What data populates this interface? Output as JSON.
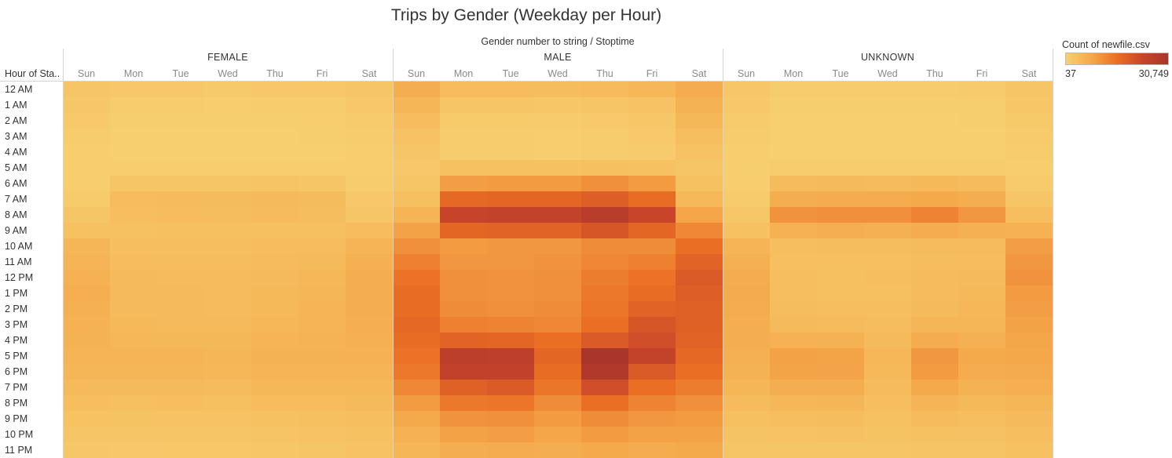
{
  "chart_data": {
    "type": "heatmap",
    "title": "Trips by Gender (Weekday per Hour)",
    "column_field": "Gender number to string  /  Stoptime",
    "row_field": "Hour of Sta..",
    "genders": [
      "FEMALE",
      "MALE",
      "UNKNOWN"
    ],
    "days": [
      "Sun",
      "Mon",
      "Tue",
      "Wed",
      "Thu",
      "Fri",
      "Sat"
    ],
    "hours": [
      "12 AM",
      "1 AM",
      "2 AM",
      "3 AM",
      "4 AM",
      "5 AM",
      "6 AM",
      "7 AM",
      "8 AM",
      "9 AM",
      "10 AM",
      "11 AM",
      "12 PM",
      "1 PM",
      "2 PM",
      "3 PM",
      "4 PM",
      "5 PM",
      "6 PM",
      "7 PM",
      "8 PM",
      "9 PM",
      "10 PM",
      "11 PM"
    ],
    "legend": {
      "title": "Count of newfile.csv",
      "min_label": "37",
      "max_label": "30,749",
      "min": 37,
      "max": 30749,
      "colors": [
        "#f7d070",
        "#f4a84a",
        "#ea6f24",
        "#c9452a",
        "#a8362b"
      ]
    },
    "values": {
      "FEMALE": [
        [
          2200,
          1500,
          1500,
          1400,
          1500,
          1600,
          2000
        ],
        [
          1700,
          800,
          800,
          700,
          800,
          900,
          1500
        ],
        [
          1300,
          500,
          500,
          500,
          500,
          600,
          1100
        ],
        [
          900,
          300,
          300,
          300,
          300,
          400,
          800
        ],
        [
          700,
          300,
          300,
          300,
          300,
          300,
          600
        ],
        [
          600,
          700,
          700,
          700,
          700,
          700,
          600
        ],
        [
          700,
          2000,
          2200,
          2100,
          2300,
          2200,
          900
        ],
        [
          1200,
          3800,
          4000,
          3900,
          4200,
          3900,
          1500
        ],
        [
          2000,
          3500,
          3800,
          3700,
          4000,
          3600,
          2200
        ],
        [
          3000,
          3000,
          3200,
          3100,
          3300,
          3200,
          3800
        ],
        [
          5000,
          3500,
          3500,
          3500,
          3800,
          3800,
          5500
        ],
        [
          5500,
          3800,
          3700,
          3700,
          4000,
          4200,
          6200
        ],
        [
          6000,
          4200,
          4000,
          4000,
          4300,
          4800,
          6500
        ],
        [
          6300,
          4300,
          4200,
          4100,
          4400,
          5000,
          6600
        ],
        [
          6200,
          4300,
          4200,
          4100,
          4500,
          5300,
          6500
        ],
        [
          6000,
          4400,
          4300,
          4200,
          4800,
          5500,
          6300
        ],
        [
          5800,
          4800,
          4700,
          4600,
          5200,
          5600,
          6200
        ],
        [
          5500,
          5300,
          5200,
          5000,
          5800,
          5700,
          6000
        ],
        [
          5000,
          5000,
          5000,
          4800,
          5500,
          5300,
          5500
        ],
        [
          4200,
          4300,
          4300,
          4100,
          4600,
          4600,
          4800
        ],
        [
          3500,
          3300,
          3400,
          3300,
          3800,
          3800,
          4200
        ],
        [
          2800,
          2600,
          2700,
          2700,
          3000,
          3200,
          3500
        ],
        [
          2200,
          2000,
          2100,
          2100,
          2300,
          2700,
          3000
        ],
        [
          1700,
          1500,
          1600,
          1600,
          1800,
          2200,
          2700
        ]
      ],
      "MALE": [
        [
          6500,
          3800,
          3800,
          3600,
          4000,
          4800,
          7000
        ],
        [
          5000,
          2000,
          2000,
          1800,
          2200,
          2700,
          5800
        ],
        [
          3800,
          1200,
          1200,
          1100,
          1300,
          1800,
          4600
        ],
        [
          2700,
          800,
          800,
          700,
          900,
          1300,
          3500
        ],
        [
          2000,
          800,
          800,
          700,
          800,
          1000,
          2700
        ],
        [
          1500,
          3000,
          3000,
          3000,
          3200,
          3000,
          2000
        ],
        [
          2000,
          9000,
          9500,
          9500,
          11000,
          9500,
          3000
        ],
        [
          3200,
          16500,
          17000,
          17000,
          18500,
          16000,
          4500
        ],
        [
          5500,
          23500,
          24500,
          24500,
          27000,
          23000,
          8000
        ],
        [
          8500,
          17000,
          17500,
          17500,
          20000,
          17000,
          12000
        ],
        [
          11000,
          9500,
          10000,
          10000,
          11500,
          11500,
          15500
        ],
        [
          13000,
          10000,
          10000,
          10500,
          12000,
          13000,
          17500
        ],
        [
          15000,
          11000,
          10500,
          11000,
          13500,
          15000,
          19000
        ],
        [
          16000,
          11000,
          10500,
          11000,
          14000,
          16000,
          18500
        ],
        [
          16000,
          11500,
          11000,
          11500,
          14500,
          17500,
          18000
        ],
        [
          16500,
          13000,
          12500,
          12000,
          15500,
          20000,
          18000
        ],
        [
          16000,
          17500,
          17000,
          15500,
          19000,
          21500,
          17500
        ],
        [
          15000,
          26000,
          25500,
          17000,
          30749,
          24500,
          16500
        ],
        [
          14000,
          25000,
          25000,
          16000,
          29000,
          19000,
          15500
        ],
        [
          12000,
          18000,
          19000,
          14500,
          21500,
          15500,
          13500
        ],
        [
          9500,
          14000,
          14500,
          11500,
          15500,
          12500,
          11000
        ],
        [
          7500,
          10500,
          11000,
          9500,
          11500,
          10000,
          9500
        ],
        [
          6000,
          8500,
          9000,
          8000,
          9500,
          8500,
          8500
        ],
        [
          5000,
          6500,
          7000,
          6500,
          7500,
          7000,
          7500
        ]
      ],
      "UNKNOWN": [
        [
          1800,
          800,
          800,
          800,
          800,
          1000,
          2200
        ],
        [
          1500,
          400,
          400,
          400,
          400,
          500,
          1800
        ],
        [
          1100,
          300,
          300,
          300,
          300,
          400,
          1400
        ],
        [
          800,
          200,
          200,
          200,
          200,
          300,
          1100
        ],
        [
          600,
          200,
          200,
          200,
          200,
          200,
          900
        ],
        [
          500,
          900,
          900,
          900,
          900,
          900,
          700
        ],
        [
          600,
          4000,
          4200,
          4100,
          4500,
          4000,
          1100
        ],
        [
          1000,
          6500,
          7000,
          6900,
          7500,
          6500,
          2000
        ],
        [
          1800,
          10500,
          11000,
          11000,
          12500,
          10000,
          3500
        ],
        [
          3000,
          6000,
          6300,
          6200,
          7000,
          6200,
          6000
        ],
        [
          5200,
          3500,
          3600,
          3600,
          4000,
          4000,
          9000
        ],
        [
          6200,
          3300,
          3300,
          3300,
          3700,
          3800,
          10000
        ],
        [
          7000,
          3500,
          3300,
          3400,
          4000,
          4300,
          10500
        ],
        [
          7200,
          3500,
          3200,
          3300,
          4000,
          4500,
          9500
        ],
        [
          7000,
          3700,
          3500,
          3400,
          4300,
          4800,
          9000
        ],
        [
          6800,
          4200,
          4000,
          3600,
          5000,
          5000,
          8500
        ],
        [
          6500,
          6000,
          5800,
          4200,
          7000,
          6200,
          8000
        ],
        [
          6200,
          8500,
          8300,
          4800,
          10000,
          7500,
          7700
        ],
        [
          5800,
          8300,
          8200,
          4500,
          9500,
          7000,
          7200
        ],
        [
          5000,
          6500,
          6500,
          4000,
          7500,
          5800,
          6300
        ],
        [
          4000,
          4800,
          5000,
          3500,
          5500,
          4500,
          5000
        ],
        [
          3200,
          3500,
          3700,
          3000,
          4000,
          3500,
          4200
        ],
        [
          2500,
          2700,
          2900,
          2600,
          3000,
          2900,
          3500
        ],
        [
          2000,
          2000,
          2200,
          2100,
          2300,
          2400,
          3000
        ]
      ]
    }
  }
}
